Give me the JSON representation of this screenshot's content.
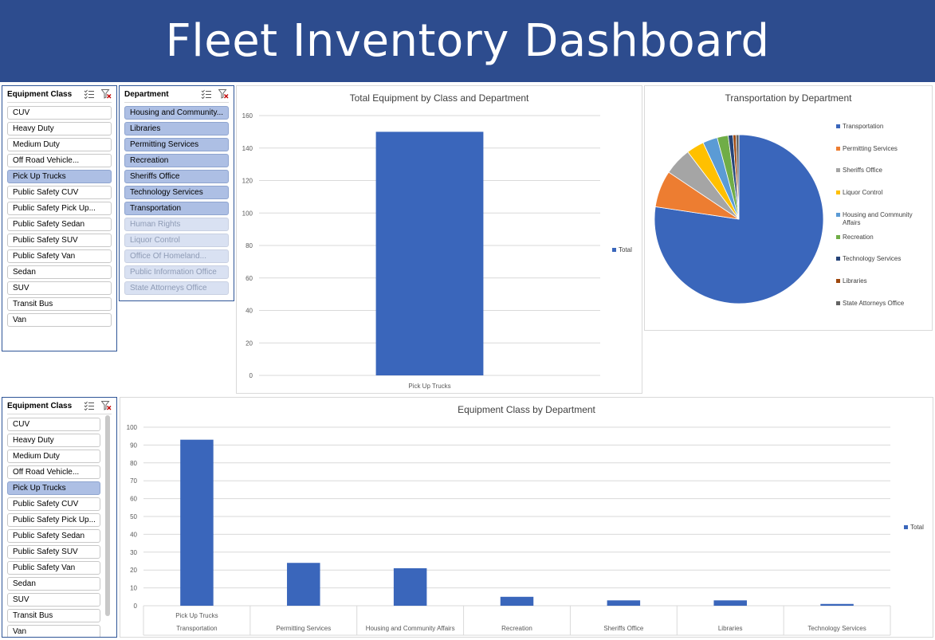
{
  "banner": {
    "title": "Fleet Inventory Dashboard"
  },
  "slicer_class_top": {
    "title": "Equipment Class",
    "items": [
      {
        "label": "CUV",
        "state": "normal"
      },
      {
        "label": "Heavy Duty",
        "state": "normal"
      },
      {
        "label": "Medium Duty",
        "state": "normal"
      },
      {
        "label": "Off Road Vehicle...",
        "state": "normal"
      },
      {
        "label": "Pick Up Trucks",
        "state": "selected"
      },
      {
        "label": "Public Safety CUV",
        "state": "normal"
      },
      {
        "label": "Public Safety Pick Up...",
        "state": "normal"
      },
      {
        "label": "Public Safety Sedan",
        "state": "normal"
      },
      {
        "label": "Public Safety SUV",
        "state": "normal"
      },
      {
        "label": "Public Safety Van",
        "state": "normal"
      },
      {
        "label": "Sedan",
        "state": "normal"
      },
      {
        "label": "SUV",
        "state": "normal"
      },
      {
        "label": "Transit Bus",
        "state": "normal"
      },
      {
        "label": "Van",
        "state": "normal"
      }
    ]
  },
  "slicer_department": {
    "title": "Department",
    "items": [
      {
        "label": "Housing and Community...",
        "state": "selected"
      },
      {
        "label": "Libraries",
        "state": "selected"
      },
      {
        "label": "Permitting Services",
        "state": "selected"
      },
      {
        "label": "Recreation",
        "state": "selected"
      },
      {
        "label": "Sheriffs Office",
        "state": "selected"
      },
      {
        "label": "Technology Services",
        "state": "selected"
      },
      {
        "label": "Transportation",
        "state": "selected"
      },
      {
        "label": "Human Rights",
        "state": "disabled"
      },
      {
        "label": "Liquor Control",
        "state": "disabled"
      },
      {
        "label": "Office Of Homeland...",
        "state": "disabled"
      },
      {
        "label": "Public Information Office",
        "state": "disabled"
      },
      {
        "label": "State Attorneys Office",
        "state": "disabled"
      }
    ]
  },
  "slicer_class_bottom": {
    "title": "Equipment Class",
    "items": [
      {
        "label": "CUV",
        "state": "normal"
      },
      {
        "label": "Heavy Duty",
        "state": "normal"
      },
      {
        "label": "Medium Duty",
        "state": "normal"
      },
      {
        "label": "Off Road Vehicle...",
        "state": "normal"
      },
      {
        "label": "Pick Up Trucks",
        "state": "selected"
      },
      {
        "label": "Public Safety CUV",
        "state": "normal"
      },
      {
        "label": "Public Safety Pick Up...",
        "state": "normal"
      },
      {
        "label": "Public Safety Sedan",
        "state": "normal"
      },
      {
        "label": "Public Safety SUV",
        "state": "normal"
      },
      {
        "label": "Public Safety Van",
        "state": "normal"
      },
      {
        "label": "Sedan",
        "state": "normal"
      },
      {
        "label": "SUV",
        "state": "normal"
      },
      {
        "label": "Transit Bus",
        "state": "normal"
      },
      {
        "label": "Van",
        "state": "normal"
      }
    ]
  },
  "icons": {
    "multi_select": "multi-select-icon",
    "clear_filter": "clear-filter-icon"
  },
  "colors": {
    "banner": "#2d4c8e",
    "bar": "#3a66bb",
    "selected_item": "#adbfe4",
    "disabled_item": "#d9e1f2"
  },
  "chart_data": [
    {
      "type": "bar",
      "title": "Total Equipment by Class and Department",
      "categories": [
        "Pick Up Trucks"
      ],
      "series": [
        {
          "name": "Total",
          "values": [
            150
          ]
        }
      ],
      "ylim": [
        0,
        160
      ],
      "yticks": [
        0,
        20,
        40,
        60,
        80,
        100,
        120,
        140,
        160
      ],
      "legend": "right",
      "grid": true
    },
    {
      "type": "pie",
      "title": "Transportation by Department",
      "categories": [
        "Transportation",
        "Permitting Services",
        "Sheriffs Office",
        "Liquor Control",
        "Housing and Community Affairs",
        "Recreation",
        "Technology Services",
        "Libraries",
        "State Attorneys Office"
      ],
      "values": [
        1100,
        100,
        75,
        48,
        40,
        30,
        13,
        8,
        8
      ],
      "colors": [
        "#3a66bb",
        "#ed7d31",
        "#a5a5a5",
        "#ffc000",
        "#5b9bd5",
        "#70ad47",
        "#264478",
        "#9e480e",
        "#636363"
      ],
      "legend": "right"
    },
    {
      "type": "bar",
      "title": "Equipment Class by Department",
      "categories": [
        "Transportation",
        "Permitting Services",
        "Housing and Community Affairs",
        "Recreation",
        "Sheriffs Office",
        "Libraries",
        "Technology Services"
      ],
      "group_label": "Pick Up Trucks",
      "series": [
        {
          "name": "Total",
          "values": [
            93,
            24,
            21,
            5,
            3,
            3,
            1
          ]
        }
      ],
      "ylim": [
        0,
        100
      ],
      "yticks": [
        0,
        10,
        20,
        30,
        40,
        50,
        60,
        70,
        80,
        90,
        100
      ],
      "legend": "right",
      "grid": true
    }
  ]
}
